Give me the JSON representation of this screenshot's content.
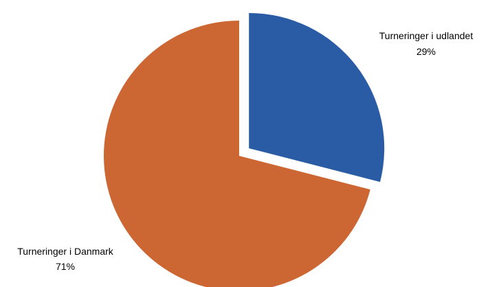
{
  "chart_data": {
    "type": "pie",
    "title": "",
    "legend": "none",
    "start_angle_deg": 0,
    "direction": "clockwise",
    "slices": [
      {
        "label": "Turneringer i udlandet",
        "percent_label": "29%",
        "value": 29,
        "color": "#2A5CA6",
        "exploded": true
      },
      {
        "label": "Turneringer i Danmark",
        "percent_label": "71%",
        "value": 71,
        "color": "#CC6633",
        "exploded": false
      }
    ]
  }
}
